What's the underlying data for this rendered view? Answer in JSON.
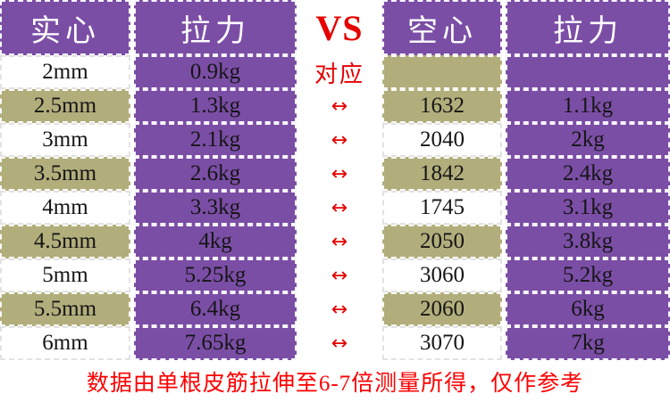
{
  "colors": {
    "purple": "#7b4ea6",
    "khaki": "#b2ae7c",
    "accent_red": "#e60000",
    "footer_red": "#ff0000",
    "header_text": "#ffffff",
    "body_text": "#151515"
  },
  "icons": {
    "arrow": "left-right-arrow-icon"
  },
  "chart_data": {
    "type": "table",
    "columns": [
      "实心",
      "拉力",
      "VS",
      "空心",
      "拉力"
    ],
    "rows": [
      [
        "2mm",
        "0.9kg",
        "对应",
        "",
        ""
      ],
      [
        "2.5mm",
        "1.3kg",
        "↔",
        "1632",
        "1.1kg"
      ],
      [
        "3mm",
        "2.1kg",
        "↔",
        "2040",
        "2kg"
      ],
      [
        "3.5mm",
        "2.6kg",
        "↔",
        "1842",
        "2.4kg"
      ],
      [
        "4mm",
        "3.3kg",
        "↔",
        "1745",
        "3.1kg"
      ],
      [
        "4.5mm",
        "4kg",
        "↔",
        "2050",
        "3.8kg"
      ],
      [
        "5mm",
        "5.25kg",
        "↔",
        "3060",
        "5.2kg"
      ],
      [
        "5.5mm",
        "6.4kg",
        "↔",
        "2060",
        "6kg"
      ],
      [
        "6mm",
        "7.65kg",
        "↔",
        "3070",
        "7kg"
      ]
    ],
    "footnote": "数据由单根皮筋拉伸至6-7倍测量所得，仅作参考"
  }
}
